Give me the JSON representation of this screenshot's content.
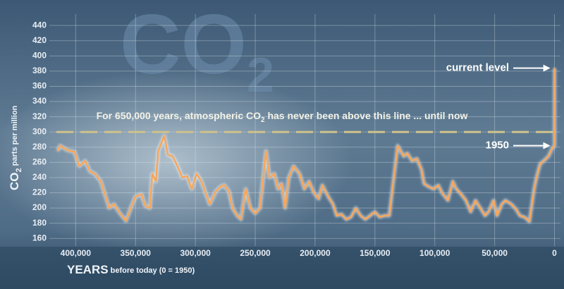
{
  "chart_data": {
    "type": "line",
    "watermark": {
      "main": "CO",
      "sub": "2"
    },
    "ylabel": {
      "main": "CO",
      "sub": "2",
      "rest": " parts per million"
    },
    "xlabel": {
      "main": "YEARS",
      "rest": " before today (0 = 1950)"
    },
    "reference_line": {
      "value": 300,
      "color": "#cfc28a",
      "text": [
        "For 650,000 years, atmospheric CO",
        "2",
        " has never been above this line ... until now"
      ]
    },
    "annotations": [
      {
        "text": "current level",
        "x": -58,
        "y": 384
      },
      {
        "text": "1950",
        "x": 0,
        "y": 282
      }
    ],
    "xlim": [
      422000,
      -5000
    ],
    "xticks": [
      {
        "value": 400000,
        "label": "400,000"
      },
      {
        "value": 350000,
        "label": "350,000"
      },
      {
        "value": 300000,
        "label": "300,000"
      },
      {
        "value": 250000,
        "label": "250,000"
      },
      {
        "value": 200000,
        "label": "200,000"
      },
      {
        "value": 150000,
        "label": "150,000"
      },
      {
        "value": 100000,
        "label": "100,000"
      },
      {
        "value": 50000,
        "label": "50,000"
      },
      0
    ],
    "ylim": [
      150,
      455
    ],
    "yticks": [
      160,
      180,
      200,
      220,
      240,
      260,
      280,
      300,
      320,
      340,
      360,
      380,
      400,
      420,
      440
    ],
    "grid": true,
    "x": [
      415000,
      413000,
      407000,
      401000,
      397000,
      392000,
      388000,
      384000,
      379000,
      376000,
      372000,
      368000,
      363000,
      358000,
      354000,
      350000,
      345000,
      342000,
      338000,
      336000,
      333000,
      331000,
      326000,
      323000,
      319000,
      315000,
      311000,
      307000,
      303000,
      299000,
      295000,
      291000,
      288000,
      283000,
      279000,
      276000,
      272000,
      269000,
      265000,
      262000,
      258000,
      254000,
      250000,
      246000,
      244000,
      241000,
      238000,
      234000,
      231000,
      228000,
      225000,
      222000,
      218000,
      213000,
      209000,
      205000,
      201000,
      197000,
      194000,
      189000,
      185000,
      182000,
      178000,
      174000,
      170000,
      166000,
      162000,
      158000,
      154000,
      150000,
      146000,
      142000,
      138000,
      135000,
      131000,
      126000,
      123000,
      119000,
      115000,
      111000,
      109000,
      105000,
      101000,
      97000,
      94000,
      89000,
      85000,
      82000,
      78000,
      74000,
      70000,
      66000,
      62000,
      58000,
      55000,
      51000,
      48000,
      44000,
      41000,
      36000,
      32000,
      29000,
      25000,
      21000,
      17000,
      15000,
      12000,
      9000,
      5000,
      2000,
      0,
      -58
    ],
    "series": [
      {
        "color": "#f7a65a",
        "values": [
          275,
          282,
          276,
          274,
          255,
          262,
          248,
          245,
          235,
          220,
          200,
          205,
          193,
          183,
          200,
          215,
          218,
          203,
          200,
          245,
          235,
          275,
          295,
          270,
          268,
          255,
          240,
          242,
          225,
          245,
          235,
          218,
          205,
          222,
          228,
          230,
          222,
          200,
          190,
          185,
          225,
          200,
          193,
          200,
          230,
          275,
          240,
          245,
          225,
          232,
          200,
          240,
          255,
          245,
          225,
          235,
          220,
          212,
          230,
          215,
          205,
          190,
          192,
          185,
          188,
          200,
          190,
          185,
          190,
          195,
          188,
          190,
          190,
          230,
          282,
          268,
          272,
          262,
          265,
          250,
          232,
          228,
          225,
          230,
          220,
          210,
          235,
          225,
          218,
          210,
          195,
          210,
          200,
          190,
          195,
          210,
          190,
          205,
          210,
          205,
          198,
          190,
          188,
          182,
          225,
          240,
          258,
          262,
          268,
          278,
          282,
          384
        ]
      }
    ]
  }
}
